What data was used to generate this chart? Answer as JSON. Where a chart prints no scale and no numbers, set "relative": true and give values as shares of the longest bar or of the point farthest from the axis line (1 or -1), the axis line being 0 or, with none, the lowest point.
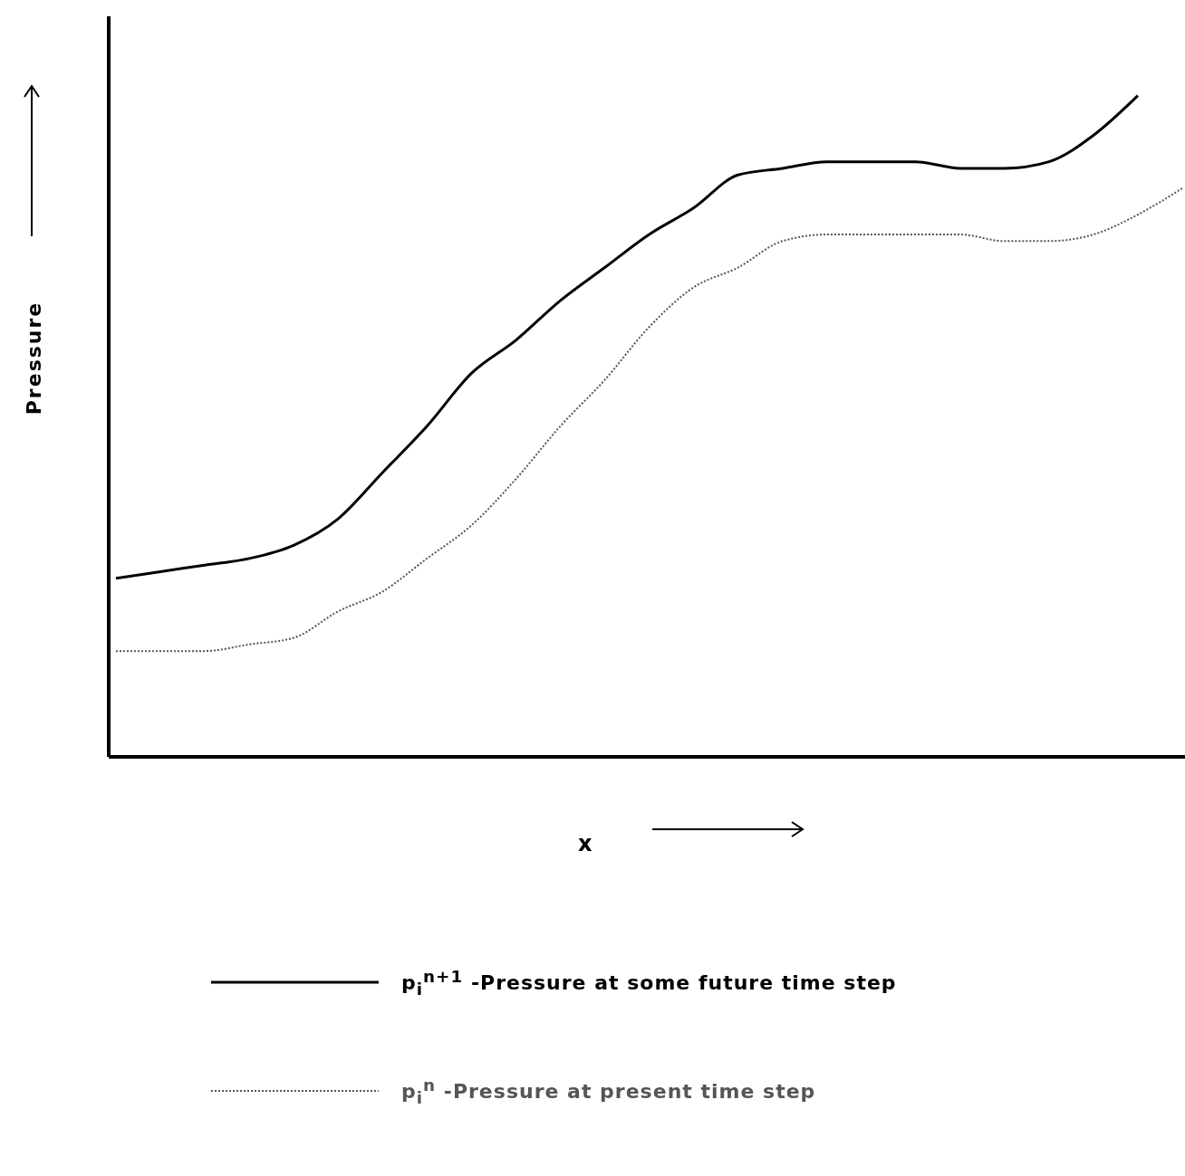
{
  "chart_data": {
    "type": "line",
    "xlabel": "x",
    "ylabel": "Pressure",
    "relative": true,
    "legend": "bottom",
    "grid": false,
    "marker": "none",
    "categories": [
      null,
      null,
      null,
      null,
      null,
      null,
      null,
      null,
      null,
      null,
      null,
      null,
      null,
      null,
      null,
      null,
      null,
      null,
      null,
      null,
      null,
      null,
      null,
      null,
      null
    ],
    "series": [
      {
        "name": "p$_{i}$$^{n+1}$ -Pressure at some future time step",
        "color": "#000000",
        "line_style": "solid",
        "values": [
          0.27,
          0.28,
          0.29,
          0.3,
          0.32,
          0.36,
          0.43,
          0.5,
          0.58,
          0.63,
          0.69,
          0.74,
          0.79,
          0.83,
          0.88,
          0.89,
          0.9,
          0.9,
          0.9,
          0.89,
          0.89,
          0.9,
          0.94,
          1,
          null
        ]
      },
      {
        "name": "p$_{i}$$^{n}$ -Pressure at present time step",
        "color": "#555555",
        "line_style": "dotted",
        "values": [
          0.16,
          0.16,
          0.16,
          0.17,
          0.18,
          0.22,
          0.25,
          0.3,
          0.35,
          0.42,
          0.5,
          0.57,
          0.65,
          0.71,
          0.74,
          0.78,
          0.79,
          0.79,
          0.79,
          0.79,
          0.78,
          0.78,
          0.79,
          0.82,
          0.86
        ]
      }
    ]
  }
}
